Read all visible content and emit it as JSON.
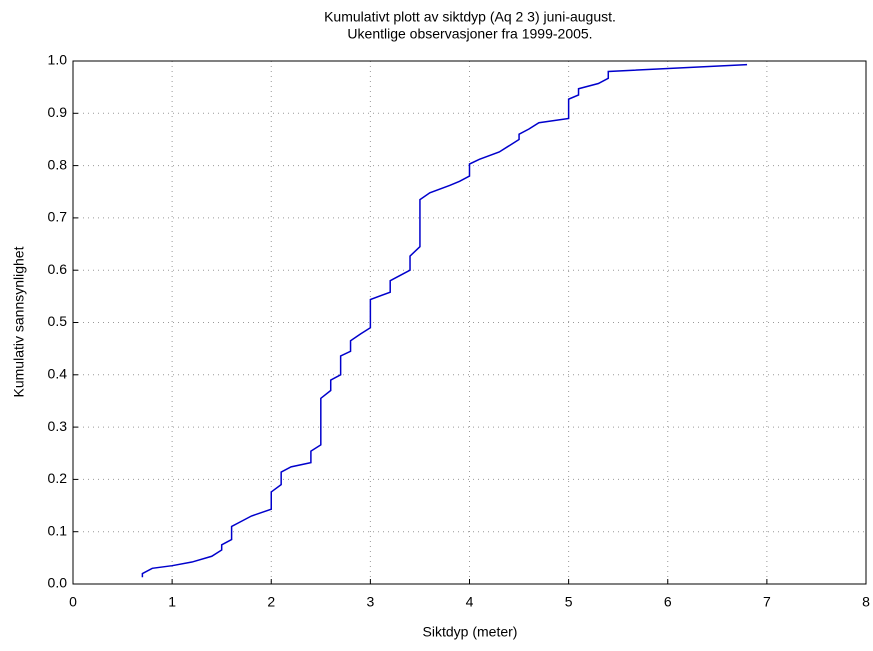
{
  "chart_data": {
    "type": "line",
    "title": "Kumulativt plott av siktdyp (Aq 2 3) juni-august.",
    "subtitle": "Ukentlige observasjoner fra 1999-2005.",
    "x_label": "Siktdyp (meter)",
    "y_label": "Kumulativ sannsynlighet",
    "xlim": [
      0,
      8
    ],
    "xticks": [
      0,
      1,
      2,
      3,
      4,
      5,
      6,
      7,
      8
    ],
    "ylim": [
      0,
      1
    ],
    "yticks": [
      {
        "value": 0,
        "label": "0.0"
      },
      0.1,
      0.2,
      0.3,
      0.4,
      0.5,
      0.6,
      0.7,
      0.8,
      0.9,
      {
        "value": 1,
        "label": "1.0"
      }
    ],
    "grid": true,
    "series": [
      {
        "color": "#0000cc",
        "x": [
          0.7,
          0.7,
          0.8,
          1.0,
          1.2,
          1.4,
          1.5,
          1.5,
          1.55,
          1.6,
          1.6,
          1.7,
          1.8,
          2.0,
          2.0,
          2.1,
          2.1,
          2.2,
          2.4,
          2.4,
          2.5,
          2.5,
          2.6,
          2.6,
          2.7,
          2.7,
          2.8,
          2.8,
          2.9,
          3.0,
          3.0,
          3.2,
          3.2,
          3.3,
          3.4,
          3.4,
          3.5,
          3.5,
          3.6,
          3.8,
          3.9,
          4.0,
          4.0,
          4.1,
          4.3,
          4.5,
          4.5,
          4.6,
          4.7,
          5.0,
          5.0,
          5.1,
          5.1,
          5.3,
          5.4,
          5.4,
          6.8
        ],
        "values": [
          0.013,
          0.02,
          0.03,
          0.035,
          0.042,
          0.053,
          0.065,
          0.075,
          0.08,
          0.085,
          0.11,
          0.12,
          0.13,
          0.143,
          0.176,
          0.19,
          0.214,
          0.224,
          0.232,
          0.254,
          0.266,
          0.355,
          0.37,
          0.39,
          0.4,
          0.436,
          0.445,
          0.465,
          0.478,
          0.49,
          0.544,
          0.558,
          0.58,
          0.59,
          0.6,
          0.627,
          0.645,
          0.735,
          0.748,
          0.762,
          0.77,
          0.78,
          0.803,
          0.812,
          0.826,
          0.85,
          0.86,
          0.87,
          0.882,
          0.89,
          0.927,
          0.935,
          0.947,
          0.957,
          0.967,
          0.98,
          0.993
        ]
      }
    ]
  }
}
